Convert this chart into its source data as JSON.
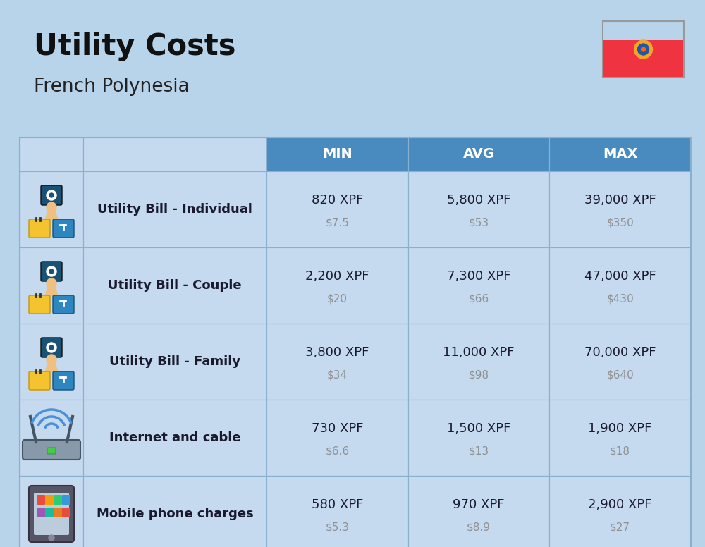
{
  "title": "Utility Costs",
  "subtitle": "French Polynesia",
  "background_color": "#b8d4ea",
  "header_color": "#4a8bbf",
  "header_text_color": "#ffffff",
  "cell_text_color": "#1a1a2e",
  "usd_text_color": "#909090",
  "border_color": "#8ab0d0",
  "row_bg": "#c5d9ef",
  "columns": [
    "MIN",
    "AVG",
    "MAX"
  ],
  "rows": [
    {
      "label": "Utility Bill - Individual",
      "icon": "utility",
      "min_xpf": "820 XPF",
      "min_usd": "$7.5",
      "avg_xpf": "5,800 XPF",
      "avg_usd": "$53",
      "max_xpf": "39,000 XPF",
      "max_usd": "$350"
    },
    {
      "label": "Utility Bill - Couple",
      "icon": "utility",
      "min_xpf": "2,200 XPF",
      "min_usd": "$20",
      "avg_xpf": "7,300 XPF",
      "avg_usd": "$66",
      "max_xpf": "47,000 XPF",
      "max_usd": "$430"
    },
    {
      "label": "Utility Bill - Family",
      "icon": "utility",
      "min_xpf": "3,800 XPF",
      "min_usd": "$34",
      "avg_xpf": "11,000 XPF",
      "avg_usd": "$98",
      "max_xpf": "70,000 XPF",
      "max_usd": "$640"
    },
    {
      "label": "Internet and cable",
      "icon": "internet",
      "min_xpf": "730 XPF",
      "min_usd": "$6.6",
      "avg_xpf": "1,500 XPF",
      "avg_usd": "$13",
      "max_xpf": "1,900 XPF",
      "max_usd": "$18"
    },
    {
      "label": "Mobile phone charges",
      "icon": "mobile",
      "min_xpf": "580 XPF",
      "min_usd": "$5.3",
      "avg_xpf": "970 XPF",
      "avg_usd": "$8.9",
      "max_xpf": "2,900 XPF",
      "max_usd": "$27"
    }
  ],
  "fig_width": 10.0,
  "fig_height": 7.76,
  "dpi": 100
}
